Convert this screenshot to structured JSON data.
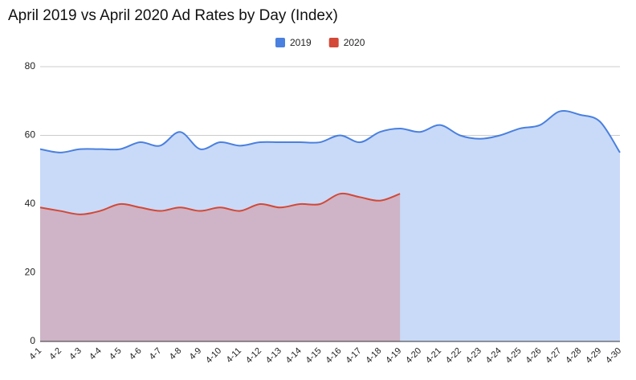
{
  "chart_data": {
    "type": "area",
    "title": "April 2019 vs April 2020 Ad Rates by Day (Index)",
    "categories": [
      "4-1",
      "4-2",
      "4-3",
      "4-4",
      "4-5",
      "4-6",
      "4-7",
      "4-8",
      "4-9",
      "4-10",
      "4-11",
      "4-12",
      "4-13",
      "4-14",
      "4-15",
      "4-16",
      "4-17",
      "4-18",
      "4-19",
      "4-20",
      "4-21",
      "4-22",
      "4-23",
      "4-24",
      "4-25",
      "4-26",
      "4-27",
      "4-28",
      "4-29",
      "4-30"
    ],
    "series": [
      {
        "name": "2019",
        "color": "#4a80df",
        "fill": "#c9daf8",
        "values": [
          56,
          55,
          56,
          56,
          56,
          58,
          57,
          61,
          56,
          58,
          57,
          58,
          58,
          58,
          58,
          60,
          58,
          61,
          62,
          61,
          63,
          60,
          59,
          60,
          62,
          63,
          67,
          66,
          64,
          55
        ]
      },
      {
        "name": "2020",
        "color": "#d34836",
        "fill": "#cfadbd",
        "values": [
          39,
          38,
          37,
          38,
          40,
          39,
          38,
          39,
          38,
          39,
          38,
          40,
          39,
          40,
          40,
          43,
          42,
          41,
          43,
          null,
          null,
          null,
          null,
          null,
          null,
          null,
          null,
          null,
          null,
          null
        ]
      }
    ],
    "ylim": [
      0,
      80
    ],
    "yticks": [
      0,
      20,
      40,
      60,
      80
    ],
    "grid": true,
    "legend": "top"
  }
}
